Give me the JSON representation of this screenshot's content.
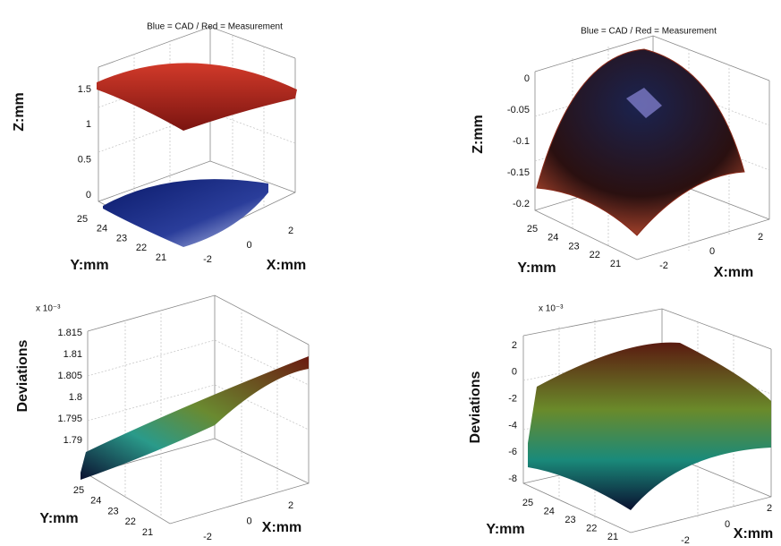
{
  "panels": [
    {
      "title": "Blue = CAD  /  Red = Measurement",
      "z_label": "Z:mm",
      "z_ticks": [
        "1.5",
        "1",
        "0.5",
        "0"
      ],
      "y_label": "Y:mm",
      "y_ticks": [
        "25",
        "24",
        "23",
        "22",
        "21"
      ],
      "x_label": "X:mm",
      "x_ticks": [
        "-2",
        "0",
        "2"
      ]
    },
    {
      "title": "Blue = CAD  /  Red = Measurement",
      "z_label": "Z:mm",
      "z_ticks": [
        "0",
        "-0.05",
        "-0.1",
        "-0.15",
        "-0.2"
      ],
      "y_label": "Y:mm",
      "y_ticks": [
        "25",
        "24",
        "23",
        "22",
        "21"
      ],
      "x_label": "X:mm",
      "x_ticks": [
        "-2",
        "0",
        "2"
      ]
    },
    {
      "scale": "x 10⁻³",
      "z_label": "Deviations",
      "z_ticks": [
        "1.815",
        "1.81",
        "1.805",
        "1.8",
        "1.795",
        "1.79"
      ],
      "y_label": "Y:mm",
      "y_ticks": [
        "25",
        "24",
        "23",
        "22",
        "21"
      ],
      "x_label": "X:mm",
      "x_ticks": [
        "-2",
        "0",
        "2"
      ]
    },
    {
      "scale": "x 10⁻³",
      "z_label": "Deviations",
      "z_ticks": [
        "2",
        "0",
        "-2",
        "-4",
        "-6",
        "-8"
      ],
      "y_label": "Y:mm",
      "y_ticks": [
        "25",
        "24",
        "23",
        "22",
        "21"
      ],
      "x_label": "X:mm",
      "x_ticks": [
        "-2",
        "0",
        "2"
      ]
    }
  ]
}
